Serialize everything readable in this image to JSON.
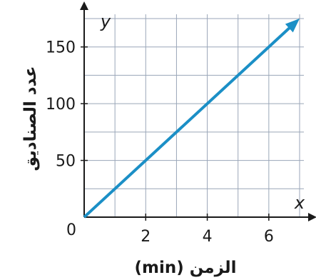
{
  "chart_data": {
    "type": "line",
    "x": [
      0,
      7
    ],
    "series": [
      {
        "values": [
          0,
          175
        ],
        "color": "#1b8fc6"
      }
    ],
    "x_ticks": [
      2,
      4,
      6
    ],
    "y_ticks": [
      50,
      100,
      150
    ],
    "x_tick_labels": [
      "2",
      "4",
      "6"
    ],
    "y_tick_labels": [
      "50",
      "100",
      "150"
    ],
    "origin_label": "0",
    "x_var": "x",
    "y_var": "y",
    "xlabel": "الزمن (min)",
    "ylabel": "عدد الصناديق",
    "xlim": [
      0,
      7
    ],
    "ylim": [
      0,
      175
    ],
    "grid": true,
    "grid_x_step": 1,
    "grid_y_step": 25,
    "arrowheads": true,
    "line_color": "#1b8fc6",
    "grid_color": "#9aa6b8"
  }
}
